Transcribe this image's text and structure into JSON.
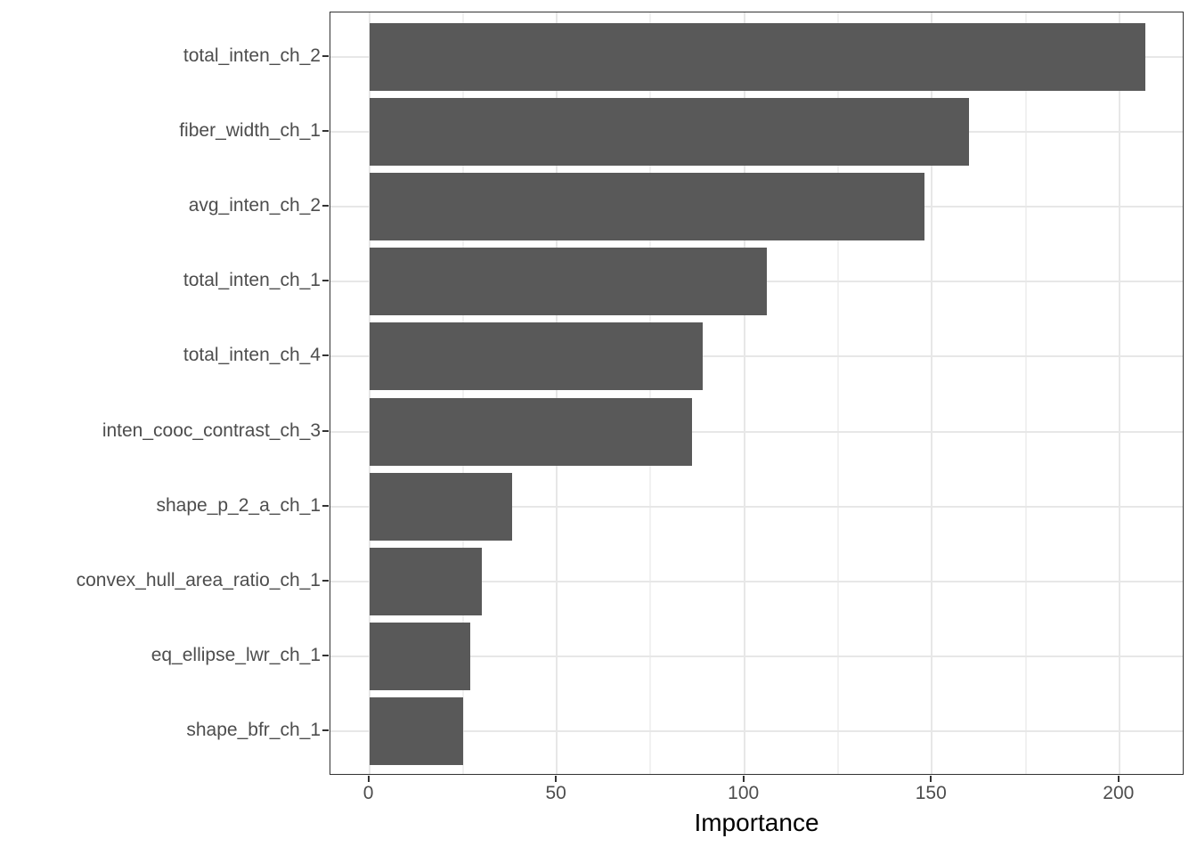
{
  "chart_data": {
    "type": "bar",
    "orientation": "horizontal",
    "title": "",
    "xlabel": "Importance",
    "ylabel": "",
    "categories": [
      "total_inten_ch_2",
      "fiber_width_ch_1",
      "avg_inten_ch_2",
      "total_inten_ch_1",
      "total_inten_ch_4",
      "inten_cooc_contrast_ch_3",
      "shape_p_2_a_ch_1",
      "convex_hull_area_ratio_ch_1",
      "eq_ellipse_lwr_ch_1",
      "shape_bfr_ch_1"
    ],
    "values": [
      207,
      160,
      148,
      106,
      89,
      86,
      38,
      30,
      27,
      25
    ],
    "xlim": [
      0,
      217
    ],
    "x_major_ticks": [
      0,
      50,
      100,
      150,
      200
    ],
    "x_minor_ticks": [
      25,
      75,
      125,
      175
    ],
    "grid": {
      "vertical_major": true,
      "vertical_minor": true,
      "horizontal_major": true
    },
    "legend_position": "none",
    "style": {
      "bar_fill": "#595959",
      "panel_border": "#333333",
      "grid_major": "#e7e7e7",
      "grid_minor": "#f1f1f1",
      "tick_color": "#333333",
      "tick_label_color": "#4d4d4d",
      "axis_title_color": "#000000",
      "background": "#ffffff"
    }
  }
}
